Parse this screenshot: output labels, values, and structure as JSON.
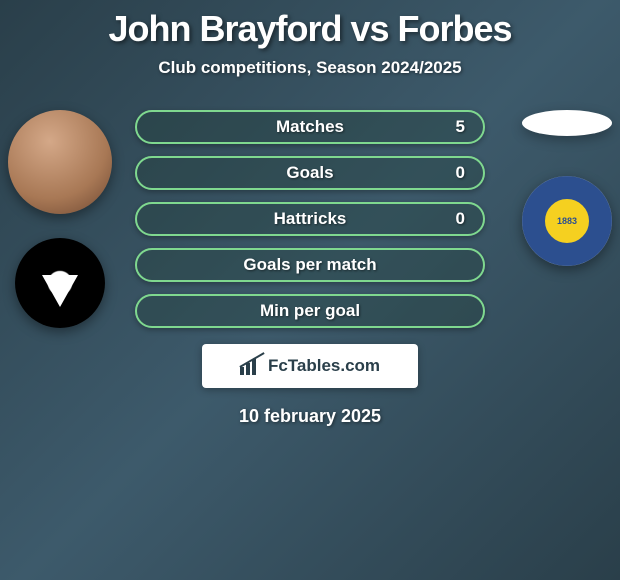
{
  "header": {
    "title": "John Brayford vs Forbes",
    "subtitle": "Club competitions, Season 2024/2025"
  },
  "players": {
    "left": {
      "name": "John Brayford",
      "club_badge_year": ""
    },
    "right": {
      "name": "Forbes",
      "club_badge_year": "1883"
    }
  },
  "stats": [
    {
      "label": "Matches",
      "value": "5"
    },
    {
      "label": "Goals",
      "value": "0"
    },
    {
      "label": "Hattricks",
      "value": "0"
    },
    {
      "label": "Goals per match",
      "value": ""
    },
    {
      "label": "Min per goal",
      "value": ""
    }
  ],
  "brand": {
    "text": "FcTables.com"
  },
  "date": "10 february 2025",
  "styling": {
    "background_color_start": "#2a3f4a",
    "background_color_mid": "#3d5a6b",
    "pill_border_color": "#7fd88f",
    "title_fontsize": 36,
    "subtitle_fontsize": 17,
    "stat_label_fontsize": 17,
    "date_fontsize": 18,
    "brand_text_fontsize": 17,
    "pill_width": 350,
    "pill_height": 34,
    "avatar_diameter": 104,
    "badge_diameter": 90
  }
}
